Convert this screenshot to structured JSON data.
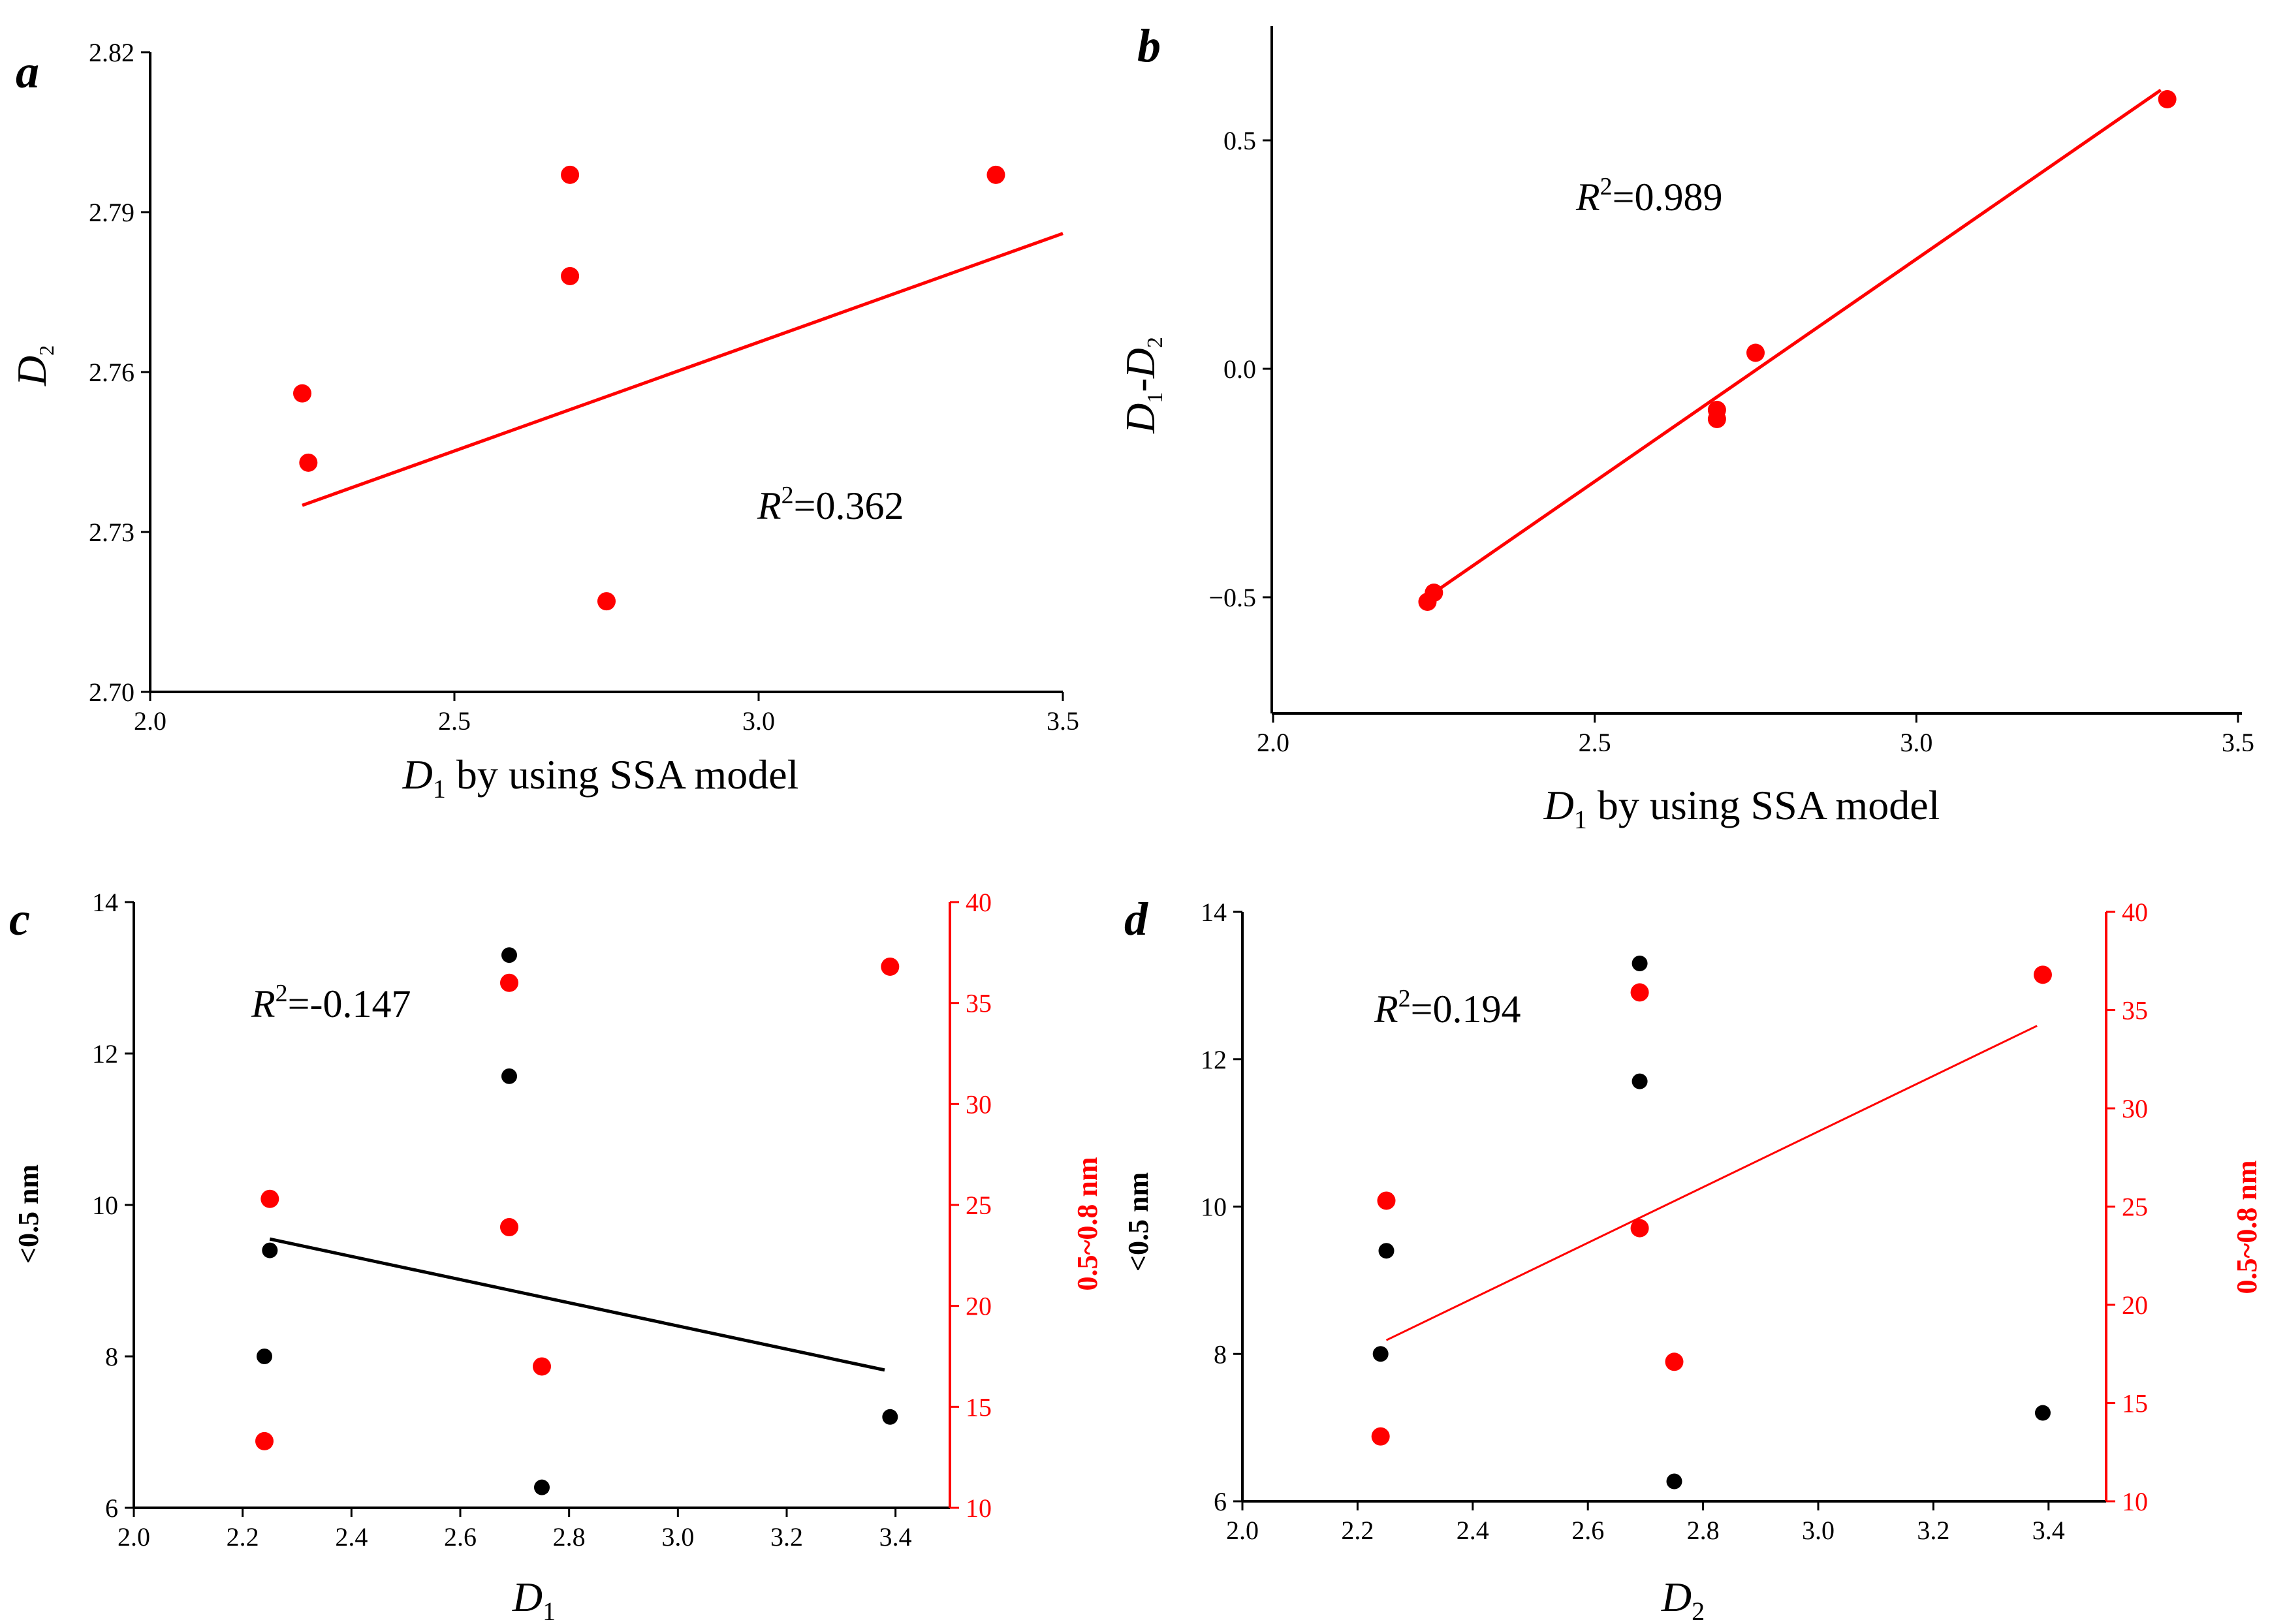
{
  "colors": {
    "red": "#ff0000",
    "black": "#000000"
  },
  "chart_data": [
    {
      "panel": "a",
      "type": "scatter",
      "xlabel_var": "D",
      "xlabel_sub": "1",
      "xlabel_rest": " by using SSA model",
      "ylabel_var": "D",
      "ylabel_sub": "2",
      "xlim": [
        2.0,
        3.5
      ],
      "ylim": [
        2.7,
        2.82
      ],
      "xticks": [
        "2.0",
        "2.5",
        "3.0",
        "3.5"
      ],
      "yticks": [
        "2.70",
        "2.73",
        "2.76",
        "2.79",
        "2.82"
      ],
      "series": [
        {
          "name": "D2 vs D1",
          "color": "#ff0000",
          "x": [
            2.25,
            2.26,
            2.69,
            2.69,
            2.75,
            3.39
          ],
          "y": [
            2.756,
            2.743,
            2.797,
            2.778,
            2.717,
            2.797
          ]
        }
      ],
      "fit": {
        "color": "#ff0000",
        "x": [
          2.25,
          3.5
        ],
        "y": [
          2.735,
          2.786
        ]
      },
      "r2_label": "=0.362"
    },
    {
      "panel": "b",
      "type": "scatter",
      "xlabel_var": "D",
      "xlabel_sub": "1",
      "xlabel_rest": " by using SSA model",
      "ylabel_var1": "D",
      "ylabel_sub1": "1",
      "ylabel_dash": "-",
      "ylabel_var2": "D",
      "ylabel_sub2": "2",
      "xlim": [
        2.0,
        3.5
      ],
      "ylim": [
        -0.75,
        0.75
      ],
      "xticks": [
        "2.0",
        "2.5",
        "3.0",
        "3.5"
      ],
      "yticks": [
        "−0.5",
        "0.0",
        "0.5"
      ],
      "ytick_values": [
        -0.5,
        0.0,
        0.5
      ],
      "series": [
        {
          "name": "D1-D2 vs D1",
          "color": "#ff0000",
          "x": [
            2.24,
            2.25,
            2.69,
            2.69,
            2.75,
            3.39
          ],
          "y": [
            -0.51,
            -0.49,
            -0.09,
            -0.11,
            0.035,
            0.59
          ]
        }
      ],
      "fit": {
        "color": "#ff0000",
        "x": [
          2.25,
          3.38
        ],
        "y": [
          -0.49,
          0.61
        ]
      },
      "r2_label": "=0.989"
    },
    {
      "panel": "c",
      "type": "scatter",
      "xlabel_var": "D",
      "xlabel_sub": "1",
      "ylabel_left": "<0.5 nm",
      "ylabel_right": "0.5~0.8 nm",
      "xlim": [
        2.0,
        3.5
      ],
      "ylim": [
        6,
        14
      ],
      "y2lim": [
        10,
        40
      ],
      "xticks": [
        "2.0",
        "2.2",
        "2.4",
        "2.6",
        "2.8",
        "3.0",
        "3.2",
        "3.4"
      ],
      "yticks": [
        "6",
        "8",
        "10",
        "12",
        "14"
      ],
      "y2ticks": [
        "10",
        "15",
        "20",
        "25",
        "30",
        "35",
        "40"
      ],
      "series": [
        {
          "name": "<0.5 nm",
          "color": "#000000",
          "axis": "left",
          "x": [
            2.24,
            2.25,
            2.69,
            2.69,
            2.75,
            3.39
          ],
          "y": [
            8.0,
            9.4,
            13.3,
            11.7,
            6.27,
            7.2
          ]
        },
        {
          "name": "0.5~0.8 nm",
          "color": "#ff0000",
          "axis": "right",
          "x": [
            2.24,
            2.25,
            2.69,
            2.69,
            2.75,
            3.39
          ],
          "y": [
            13.3,
            25.3,
            36.0,
            23.9,
            17.0,
            36.8
          ]
        }
      ],
      "fit": {
        "color": "#000000",
        "axis": "left",
        "x": [
          2.25,
          3.38
        ],
        "y": [
          9.55,
          7.82
        ]
      },
      "r2_label": "=-0.147"
    },
    {
      "panel": "d",
      "type": "scatter",
      "xlabel_var": "D",
      "xlabel_sub": "2",
      "ylabel_left": "<0.5 nm",
      "ylabel_right": "0.5~0.8 nm",
      "xlim": [
        2.0,
        3.5
      ],
      "ylim": [
        6,
        14
      ],
      "y2lim": [
        10,
        40
      ],
      "xticks": [
        "2.0",
        "2.2",
        "2.4",
        "2.6",
        "2.8",
        "3.0",
        "3.2",
        "3.4"
      ],
      "yticks": [
        "6",
        "8",
        "10",
        "12",
        "14"
      ],
      "y2ticks": [
        "10",
        "15",
        "20",
        "25",
        "30",
        "35",
        "40"
      ],
      "series": [
        {
          "name": "<0.5 nm",
          "color": "#000000",
          "axis": "left",
          "x": [
            2.24,
            2.25,
            2.69,
            2.69,
            2.75,
            3.39
          ],
          "y": [
            8.0,
            9.4,
            13.3,
            11.7,
            6.27,
            7.2
          ]
        },
        {
          "name": "0.5~0.8 nm",
          "color": "#ff0000",
          "axis": "right",
          "x": [
            2.24,
            2.25,
            2.69,
            2.69,
            2.75,
            3.39
          ],
          "y": [
            13.3,
            25.3,
            35.9,
            23.9,
            17.1,
            36.8
          ]
        }
      ],
      "fit": {
        "color": "#ff0000",
        "axis": "right",
        "x": [
          2.25,
          3.38
        ],
        "y": [
          18.2,
          34.2
        ]
      },
      "r2_label": "=0.194"
    }
  ]
}
